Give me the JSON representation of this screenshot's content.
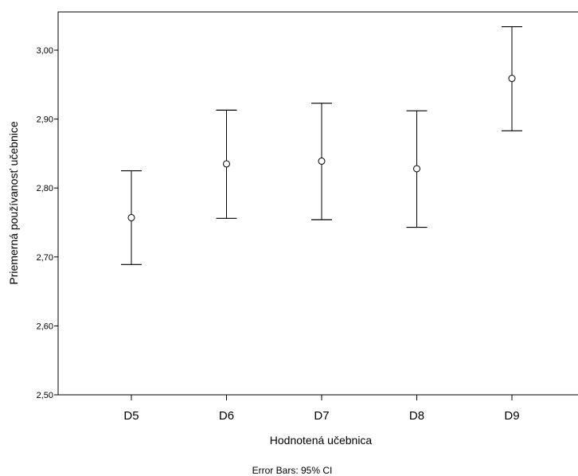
{
  "chart_data": {
    "type": "errorbar",
    "title": "",
    "xlabel": "Hodnotená učebnica",
    "ylabel": "Priemerná používanosť učebnice",
    "note": "Error Bars: 95% CI",
    "categories": [
      "D5",
      "D6",
      "D7",
      "D8",
      "D9"
    ],
    "means": [
      2.757,
      2.835,
      2.839,
      2.828,
      2.959
    ],
    "lower": [
      2.689,
      2.756,
      2.754,
      2.743,
      2.883
    ],
    "upper": [
      2.825,
      2.913,
      2.923,
      2.912,
      3.034
    ],
    "ylim": [
      2.5,
      3.05
    ],
    "yticks": [
      2.5,
      2.6,
      2.7,
      2.8,
      2.9,
      3.0
    ],
    "ytick_labels": [
      "2,50",
      "2,60",
      "2,70",
      "2,80",
      "2,90",
      "3,00"
    ],
    "grid": false,
    "legend": "none"
  }
}
